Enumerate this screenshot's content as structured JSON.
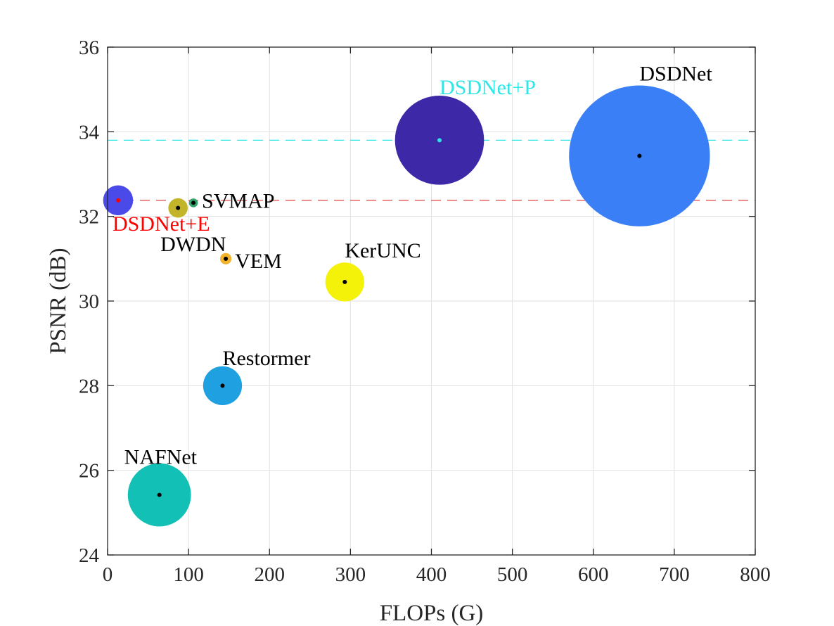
{
  "chart_data": {
    "type": "scatter",
    "xlabel": "FLOPs (G)",
    "ylabel": "PSNR (dB)",
    "xlim": [
      0,
      800
    ],
    "ylim": [
      24,
      36
    ],
    "xticks": [
      0,
      100,
      200,
      300,
      400,
      500,
      600,
      700,
      800
    ],
    "yticks": [
      24,
      26,
      28,
      30,
      32,
      34,
      36
    ],
    "grid": true,
    "reference_lines": [
      {
        "y": 33.8,
        "color": "#2ee6e6",
        "style": "dashed"
      },
      {
        "y": 32.38,
        "color": "#e03030",
        "style": "dashed"
      }
    ],
    "points": [
      {
        "name": "DSDNet+E",
        "x": 13,
        "y": 32.38,
        "size_r_units": 18.5,
        "color": "#4a4ae8",
        "center_color": "#ff0000",
        "label_color": "#ff0000",
        "label_anchor": "start",
        "label_dx": -8,
        "label_dy": -0.55
      },
      {
        "name": "SVMAP",
        "x": 106,
        "y": 32.32,
        "size_r_units": 5.5,
        "color": "#33a66e",
        "center_color": "#000000",
        "label_color": "#000000",
        "label_anchor": "start",
        "label_dx": 12,
        "label_dy": 0.05
      },
      {
        "name": "DWDN",
        "x": 87,
        "y": 32.2,
        "size_r_units": 12,
        "color": "#c3b52a",
        "center_color": "#000000",
        "label_color": "#000000",
        "label_anchor": "start",
        "label_dx": -25,
        "label_dy": -0.85
      },
      {
        "name": "VEM",
        "x": 146,
        "y": 31.0,
        "size_r_units": 7,
        "color": "#f2b32b",
        "center_color": "#000000",
        "label_color": "#000000",
        "label_anchor": "start",
        "label_dx": 13,
        "label_dy": -0.05
      },
      {
        "name": "KerUNC",
        "x": 293,
        "y": 30.45,
        "size_r_units": 24,
        "color": "#f5f20a",
        "center_color": "#000000",
        "label_color": "#000000",
        "label_anchor": "start",
        "label_dx": 0,
        "label_dy": 0.75
      },
      {
        "name": "Restormer",
        "x": 142,
        "y": 28.0,
        "size_r_units": 24,
        "color": "#1fa0e0",
        "center_color": "#000000",
        "label_color": "#000000",
        "label_anchor": "start",
        "label_dx": 0,
        "label_dy": 0.65
      },
      {
        "name": "NAFNet",
        "x": 64,
        "y": 25.42,
        "size_r_units": 39,
        "color": "#13c0b5",
        "center_color": "#000000",
        "label_color": "#000000",
        "label_anchor": "start",
        "label_dx": -50,
        "label_dy": 0.9
      },
      {
        "name": "DSDNet+P",
        "x": 410,
        "y": 33.8,
        "size_r_units": 55,
        "color": "#3d28a8",
        "center_color": "#2ee6e6",
        "label_color": "#2ee6e6",
        "label_anchor": "start",
        "label_dx": 0,
        "label_dy": 1.25
      },
      {
        "name": "DSDNet",
        "x": 657,
        "y": 33.43,
        "size_r_units": 87,
        "color": "#3a7ff6",
        "center_color": "#000000",
        "label_color": "#000000",
        "label_anchor": "start",
        "label_dx": 0,
        "label_dy": 1.95
      }
    ]
  }
}
